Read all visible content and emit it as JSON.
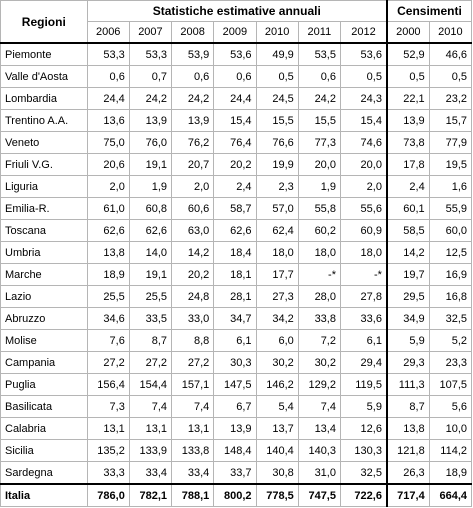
{
  "header": {
    "regions_label": "Regioni",
    "group_annual": "Statistiche estimative annuali",
    "group_census": "Censimenti",
    "annual_years": [
      "2006",
      "2007",
      "2008",
      "2009",
      "2010",
      "2011",
      "2012"
    ],
    "census_years": [
      "2000",
      "2010"
    ]
  },
  "rows": [
    {
      "region": "Piemonte",
      "values": [
        "53,3",
        "53,3",
        "53,9",
        "53,6",
        "49,9",
        "53,5",
        "53,6",
        "52,9",
        "46,6"
      ]
    },
    {
      "region": "Valle d'Aosta",
      "values": [
        "0,6",
        "0,7",
        "0,6",
        "0,6",
        "0,5",
        "0,6",
        "0,5",
        "0,5",
        "0,5"
      ]
    },
    {
      "region": "Lombardia",
      "values": [
        "24,4",
        "24,2",
        "24,2",
        "24,4",
        "24,5",
        "24,2",
        "24,3",
        "22,1",
        "23,2"
      ]
    },
    {
      "region": "Trentino A.A.",
      "values": [
        "13,6",
        "13,9",
        "13,9",
        "15,4",
        "15,5",
        "15,5",
        "15,4",
        "13,9",
        "15,7"
      ]
    },
    {
      "region": "Veneto",
      "values": [
        "75,0",
        "76,0",
        "76,2",
        "76,4",
        "76,6",
        "77,3",
        "74,6",
        "73,8",
        "77,9"
      ]
    },
    {
      "region": "Friuli V.G.",
      "values": [
        "20,6",
        "19,1",
        "20,7",
        "20,2",
        "19,9",
        "20,0",
        "20,0",
        "17,8",
        "19,5"
      ]
    },
    {
      "region": "Liguria",
      "values": [
        "2,0",
        "1,9",
        "2,0",
        "2,4",
        "2,3",
        "1,9",
        "2,0",
        "2,4",
        "1,6"
      ]
    },
    {
      "region": "Emilia-R.",
      "values": [
        "61,0",
        "60,8",
        "60,6",
        "58,7",
        "57,0",
        "55,8",
        "55,6",
        "60,1",
        "55,9"
      ]
    },
    {
      "region": "Toscana",
      "values": [
        "62,6",
        "62,6",
        "63,0",
        "62,6",
        "62,4",
        "60,2",
        "60,9",
        "58,5",
        "60,0"
      ]
    },
    {
      "region": "Umbria",
      "values": [
        "13,8",
        "14,0",
        "14,2",
        "18,4",
        "18,0",
        "18,0",
        "18,0",
        "14,2",
        "12,5"
      ]
    },
    {
      "region": "Marche",
      "values": [
        "18,9",
        "19,1",
        "20,2",
        "18,1",
        "17,7",
        "-*",
        "-*",
        "19,7",
        "16,9"
      ]
    },
    {
      "region": "Lazio",
      "values": [
        "25,5",
        "25,5",
        "24,8",
        "28,1",
        "27,3",
        "28,0",
        "27,8",
        "29,5",
        "16,8"
      ]
    },
    {
      "region": "Abruzzo",
      "values": [
        "34,6",
        "33,5",
        "33,0",
        "34,7",
        "34,2",
        "33,8",
        "33,6",
        "34,9",
        "32,5"
      ]
    },
    {
      "region": "Molise",
      "values": [
        "7,6",
        "8,7",
        "8,8",
        "6,1",
        "6,0",
        "7,2",
        "6,1",
        "5,9",
        "5,2"
      ]
    },
    {
      "region": "Campania",
      "values": [
        "27,2",
        "27,2",
        "27,2",
        "30,3",
        "30,2",
        "30,2",
        "29,4",
        "29,3",
        "23,3"
      ]
    },
    {
      "region": "Puglia",
      "values": [
        "156,4",
        "154,4",
        "157,1",
        "147,5",
        "146,2",
        "129,2",
        "119,5",
        "111,3",
        "107,5"
      ]
    },
    {
      "region": "Basilicata",
      "values": [
        "7,3",
        "7,4",
        "7,4",
        "6,7",
        "5,4",
        "7,4",
        "5,9",
        "8,7",
        "5,6"
      ]
    },
    {
      "region": "Calabria",
      "values": [
        "13,1",
        "13,1",
        "13,1",
        "13,9",
        "13,7",
        "13,4",
        "12,6",
        "13,8",
        "10,0"
      ]
    },
    {
      "region": "Sicilia",
      "values": [
        "135,2",
        "133,9",
        "133,8",
        "148,4",
        "140,4",
        "140,3",
        "130,3",
        "121,8",
        "114,2"
      ]
    },
    {
      "region": "Sardegna",
      "values": [
        "33,3",
        "33,4",
        "33,4",
        "33,7",
        "30,8",
        "31,0",
        "32,5",
        "26,3",
        "18,9"
      ]
    }
  ],
  "total": {
    "region": "Italia",
    "values": [
      "786,0",
      "782,1",
      "788,1",
      "800,2",
      "778,5",
      "747,5",
      "722,6",
      "717,4",
      "664,4"
    ]
  }
}
